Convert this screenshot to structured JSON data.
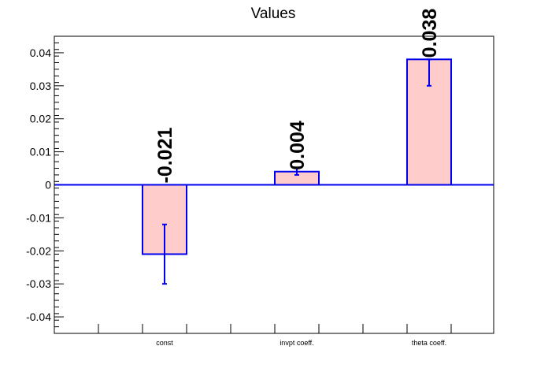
{
  "chart_data": {
    "type": "bar",
    "title": "Values",
    "categories": [
      "const",
      "invpt coeff.",
      "theta coeff."
    ],
    "values": [
      -0.021,
      0.004,
      0.038
    ],
    "value_labels": [
      "-0.021",
      "0.004",
      "0.038"
    ],
    "error_low": [
      -0.03,
      0.003,
      0.03
    ],
    "error_high": [
      -0.012,
      0.005,
      0.038
    ],
    "ylim": [
      -0.045,
      0.045
    ],
    "yticks": [
      0.04,
      0.03,
      0.02,
      0.01,
      0,
      -0.01,
      -0.02,
      -0.03,
      -0.04
    ],
    "ytick_labels": [
      "0.04",
      "0.03",
      "0.02",
      "0.01",
      "0",
      "-0.01",
      "-0.02",
      "-0.03",
      "-0.04"
    ],
    "xlabel": "",
    "ylabel": "",
    "grid": false,
    "legend": "none",
    "colors": {
      "bar_fill": "#ffcccc",
      "bar_edge": "#0000ee",
      "zero_line": "#0000ee",
      "error_bar": "#0000ee",
      "axis": "#000000"
    }
  }
}
